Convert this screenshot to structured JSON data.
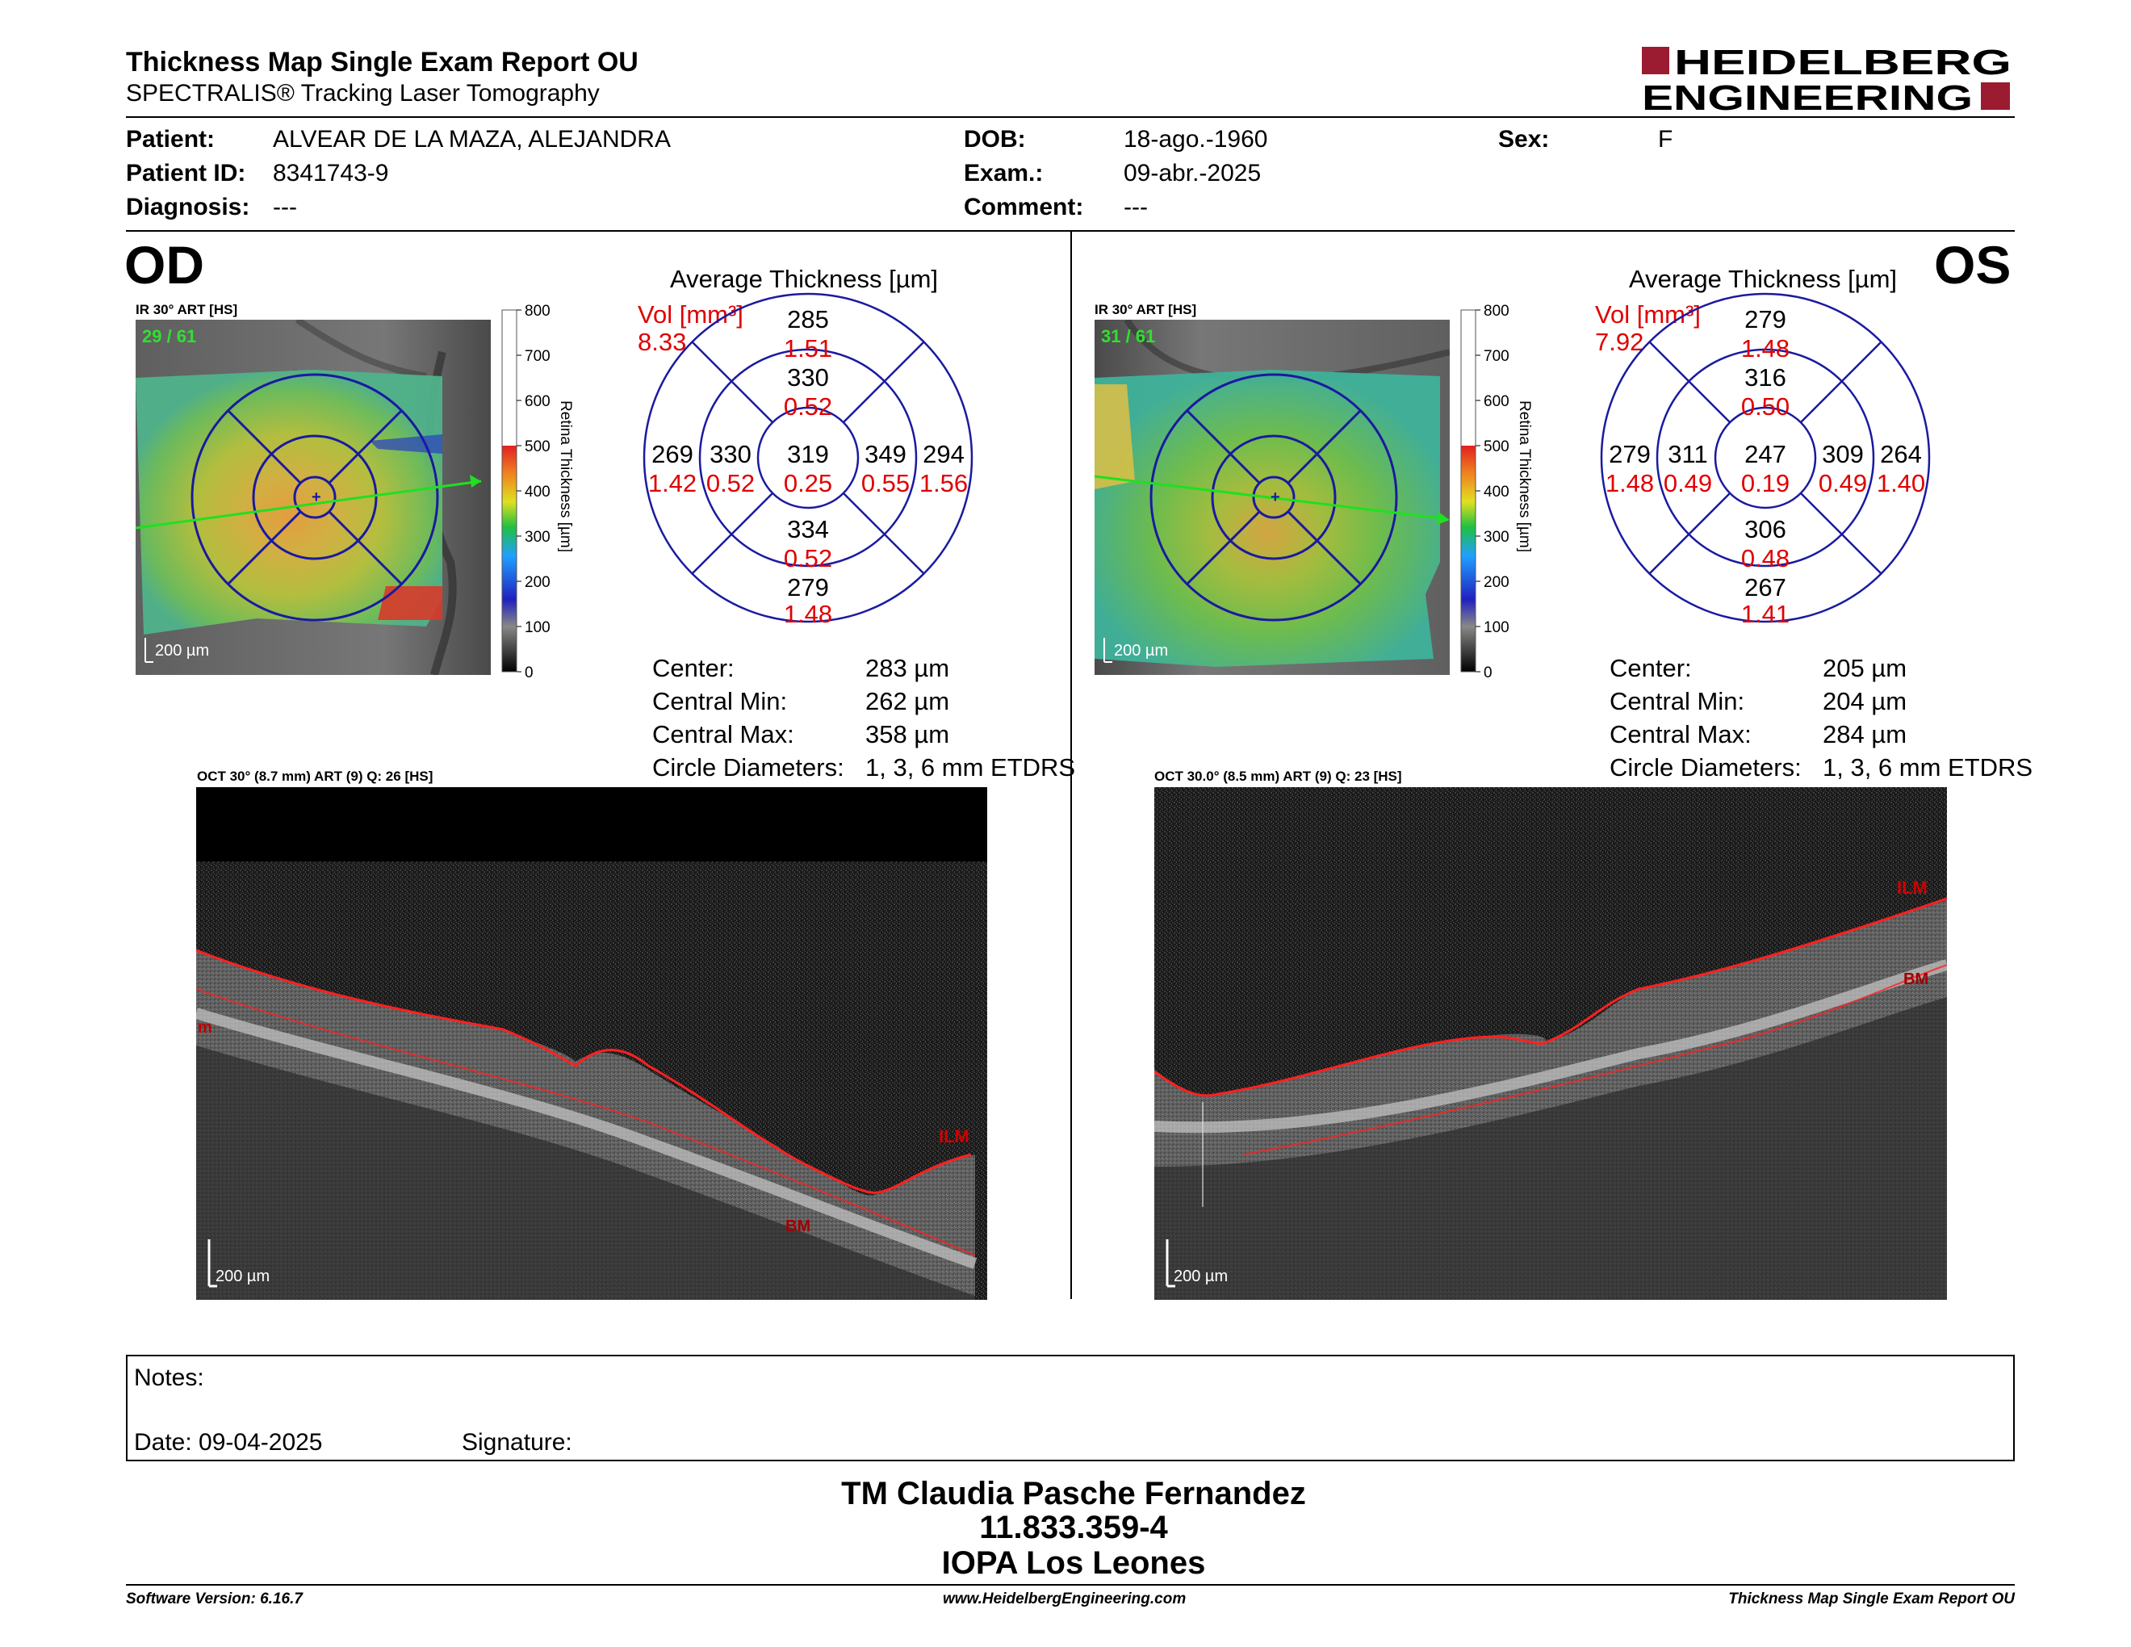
{
  "header": {
    "title": "Thickness Map Single Exam Report OU",
    "subtitle": "SPECTRALIS® Tracking Laser Tomography",
    "logo_line1": "HEIDELBERG",
    "logo_line2": "ENGINEERING",
    "logo_color": "#9b1b30"
  },
  "patient": {
    "patient_label": "Patient:",
    "patient_value": "ALVEAR DE LA MAZA, ALEJANDRA",
    "id_label": "Patient ID:",
    "id_value": "8341743-9",
    "diagnosis_label": "Diagnosis:",
    "diagnosis_value": "---",
    "dob_label": "DOB:",
    "dob_value": "18-ago.-1960",
    "exam_label": "Exam.:",
    "exam_value": "09-abr.-2025",
    "comment_label": "Comment:",
    "comment_value": "---",
    "sex_label": "Sex:",
    "sex_value": "F"
  },
  "od": {
    "eye": "OD",
    "ir_label": "IR 30° ART [HS]",
    "ir_frames": "29 / 61",
    "scale": "200 µm",
    "avg_title": "Average Thickness [µm]",
    "vol_label": "Vol [mm³]",
    "vol_value": "8.33",
    "grid": {
      "center": [
        "319",
        "0.25"
      ],
      "inner_sup": [
        "330",
        "0.52"
      ],
      "inner_inf": [
        "334",
        "0.52"
      ],
      "inner_temp": [
        "330",
        "0.52"
      ],
      "inner_nasal": [
        "349",
        "0.55"
      ],
      "outer_sup": [
        "285",
        "1.51"
      ],
      "outer_inf": [
        "279",
        "1.48"
      ],
      "outer_temp": [
        "269",
        "1.42"
      ],
      "outer_nasal": [
        "294",
        "1.56"
      ]
    },
    "stats": [
      {
        "label": "Center:",
        "value": "283 µm"
      },
      {
        "label": "Central Min:",
        "value": "262 µm"
      },
      {
        "label": "Central Max:",
        "value": "358 µm"
      },
      {
        "label": "Circle Diameters:",
        "value": "1, 3, 6 mm ETDRS"
      }
    ],
    "oct_label": "OCT 30° (8.7 mm) ART (9) Q: 26 [HS]",
    "oct_scale": "200 µm",
    "ilm": "ILM",
    "bm": "BM",
    "m_mark": "m"
  },
  "os": {
    "eye": "OS",
    "ir_label": "IR 30° ART [HS]",
    "ir_frames": "31 / 61",
    "scale": "200 µm",
    "avg_title": "Average Thickness [µm]",
    "vol_label": "Vol [mm³]",
    "vol_value": "7.92",
    "grid": {
      "center": [
        "247",
        "0.19"
      ],
      "inner_sup": [
        "316",
        "0.50"
      ],
      "inner_inf": [
        "306",
        "0.48"
      ],
      "inner_temp": [
        "309",
        "0.49"
      ],
      "inner_nasal": [
        "311",
        "0.49"
      ],
      "outer_sup": [
        "279",
        "1.48"
      ],
      "outer_inf": [
        "267",
        "1.41"
      ],
      "outer_temp": [
        "264",
        "1.40"
      ],
      "outer_nasal": [
        "279",
        "1.48"
      ]
    },
    "stats": [
      {
        "label": "Center:",
        "value": "205 µm"
      },
      {
        "label": "Central Min:",
        "value": "204 µm"
      },
      {
        "label": "Central Max:",
        "value": "284 µm"
      },
      {
        "label": "Circle Diameters:",
        "value": "1, 3, 6 mm ETDRS"
      }
    ],
    "oct_label": "OCT 30.0° (8.5 mm) ART (9) Q: 23 [HS]",
    "oct_scale": "200 µm",
    "ilm": "ILM",
    "bm": "BM"
  },
  "colorbar": {
    "ticks": [
      "800",
      "700",
      "600",
      "500",
      "400",
      "300",
      "200",
      "100",
      "0"
    ],
    "title": "Retina Thickness [µm]"
  },
  "notes": {
    "notes_label": "Notes:",
    "date_label": "Date: 09-04-2025",
    "signature_label": "Signature:"
  },
  "signer": {
    "name": "TM Claudia Pasche Fernandez",
    "rut": "11.833.359-4",
    "org": "IOPA Los Leones"
  },
  "footer": {
    "left": "Software Version: 6.16.7",
    "center": "www.HeidelbergEngineering.com",
    "right": "Thickness Map Single Exam Report OU"
  }
}
